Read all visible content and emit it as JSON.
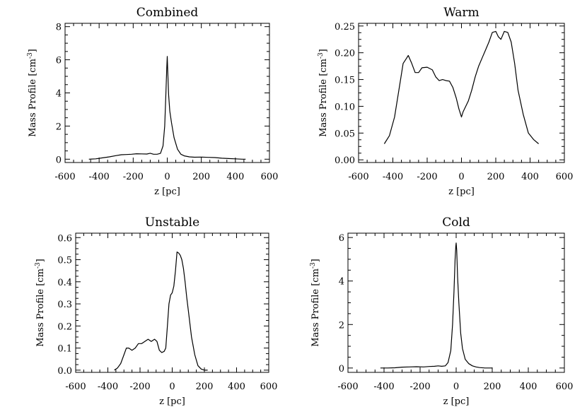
{
  "chart_data": [
    {
      "type": "line",
      "title": "Combined",
      "xlabel": "z [pc]",
      "ylabel": "Mass Profile [cm",
      "ylabel_sup": "-3",
      "ylabel_end": "]",
      "xlim": [
        -600,
        600
      ],
      "ylim": [
        -0.2,
        8.2
      ],
      "xticks": [
        -600,
        -400,
        -200,
        0,
        200,
        400,
        600
      ],
      "xtick_labels": [
        "-600",
        "-400",
        "-200",
        "0",
        "200",
        "400",
        "600"
      ],
      "yticks": [
        0,
        2,
        4,
        6,
        8
      ],
      "ytick_labels": [
        "0",
        "2",
        "4",
        "6",
        "8"
      ],
      "series": [
        {
          "name": "Combined",
          "x": [
            -460,
            -420,
            -380,
            -340,
            -300,
            -270,
            -240,
            -210,
            -180,
            -150,
            -120,
            -100,
            -80,
            -60,
            -40,
            -25,
            -15,
            -8,
            -3,
            0,
            3,
            8,
            15,
            25,
            40,
            60,
            80,
            100,
            130,
            160,
            200,
            240,
            280,
            320,
            360,
            400,
            440,
            460
          ],
          "y": [
            0.0,
            0.02,
            0.08,
            0.14,
            0.22,
            0.27,
            0.28,
            0.3,
            0.33,
            0.32,
            0.31,
            0.36,
            0.3,
            0.3,
            0.35,
            0.8,
            2.0,
            4.0,
            5.5,
            6.2,
            5.3,
            3.9,
            2.9,
            2.2,
            1.3,
            0.6,
            0.3,
            0.2,
            0.14,
            0.12,
            0.13,
            0.11,
            0.1,
            0.06,
            0.04,
            0.02,
            0.0,
            0.0
          ]
        }
      ]
    },
    {
      "type": "line",
      "title": "Warm",
      "xlabel": "z [pc]",
      "ylabel": "Mass Profile [cm",
      "ylabel_sup": "-3",
      "ylabel_end": "]",
      "xlim": [
        -600,
        600
      ],
      "ylim": [
        -0.005,
        0.255
      ],
      "xticks": [
        -600,
        -400,
        -200,
        0,
        200,
        400,
        600
      ],
      "xtick_labels": [
        "-600",
        "-400",
        "-200",
        "0",
        "200",
        "400",
        "600"
      ],
      "yticks": [
        0.0,
        0.05,
        0.1,
        0.15,
        0.2,
        0.25
      ],
      "ytick_labels": [
        "0.00",
        "0.05",
        "0.10",
        "0.15",
        "0.20",
        "0.25"
      ],
      "series": [
        {
          "name": "Warm",
          "x": [
            -450,
            -420,
            -390,
            -360,
            -340,
            -320,
            -310,
            -290,
            -270,
            -250,
            -230,
            -200,
            -170,
            -150,
            -130,
            -110,
            -90,
            -70,
            -50,
            -30,
            -15,
            0,
            10,
            25,
            40,
            60,
            80,
            100,
            120,
            140,
            160,
            180,
            200,
            215,
            230,
            250,
            270,
            290,
            310,
            330,
            360,
            390,
            420,
            450
          ],
          "y": [
            0.03,
            0.045,
            0.08,
            0.14,
            0.18,
            0.19,
            0.195,
            0.18,
            0.163,
            0.163,
            0.172,
            0.173,
            0.168,
            0.155,
            0.148,
            0.15,
            0.148,
            0.147,
            0.135,
            0.115,
            0.095,
            0.08,
            0.09,
            0.1,
            0.11,
            0.13,
            0.155,
            0.175,
            0.19,
            0.205,
            0.22,
            0.238,
            0.24,
            0.23,
            0.225,
            0.24,
            0.238,
            0.22,
            0.18,
            0.13,
            0.085,
            0.05,
            0.038,
            0.03
          ]
        }
      ]
    },
    {
      "type": "line",
      "title": "Unstable",
      "xlabel": "z [pc]",
      "ylabel": "Mass Profile [cm",
      "ylabel_sup": "-3",
      "ylabel_end": "]",
      "xlim": [
        -600,
        600
      ],
      "ylim": [
        -0.01,
        0.62
      ],
      "xticks": [
        -600,
        -400,
        -200,
        0,
        200,
        400,
        600
      ],
      "xtick_labels": [
        "-600",
        "-400",
        "-200",
        "0",
        "200",
        "400",
        "600"
      ],
      "yticks": [
        0.0,
        0.1,
        0.2,
        0.3,
        0.4,
        0.5,
        0.6
      ],
      "ytick_labels": [
        "0.0",
        "0.1",
        "0.2",
        "0.3",
        "0.4",
        "0.5",
        "0.6"
      ],
      "series": [
        {
          "name": "Unstable",
          "x": [
            -360,
            -340,
            -320,
            -300,
            -285,
            -270,
            -250,
            -230,
            -210,
            -190,
            -170,
            -150,
            -130,
            -110,
            -95,
            -80,
            -65,
            -50,
            -40,
            -30,
            -20,
            -10,
            0,
            10,
            20,
            30,
            40,
            50,
            60,
            70,
            80,
            90,
            100,
            120,
            140,
            160,
            180,
            200,
            220
          ],
          "y": [
            0.0,
            0.01,
            0.03,
            0.07,
            0.1,
            0.1,
            0.09,
            0.1,
            0.12,
            0.12,
            0.13,
            0.14,
            0.13,
            0.14,
            0.13,
            0.09,
            0.08,
            0.085,
            0.1,
            0.2,
            0.3,
            0.34,
            0.35,
            0.38,
            0.45,
            0.535,
            0.53,
            0.52,
            0.5,
            0.46,
            0.4,
            0.33,
            0.27,
            0.15,
            0.07,
            0.02,
            0.005,
            0.0,
            0.0
          ]
        }
      ]
    },
    {
      "type": "line",
      "title": "Cold",
      "xlabel": "z [pc]",
      "ylabel": "Mass Profile [cm",
      "ylabel_sup": "-3",
      "ylabel_end": "]",
      "xlim": [
        -600,
        600
      ],
      "ylim": [
        -0.2,
        6.2
      ],
      "xticks": [
        -600,
        -400,
        -200,
        0,
        200,
        400,
        600
      ],
      "xtick_labels": [
        "-600",
        "-400",
        "-200",
        "0",
        "200",
        "400",
        "600"
      ],
      "yticks": [
        0,
        2,
        4,
        6
      ],
      "ytick_labels": [
        "0",
        "2",
        "4",
        "6"
      ],
      "series": [
        {
          "name": "Cold",
          "x": [
            -420,
            -380,
            -340,
            -300,
            -260,
            -220,
            -180,
            -150,
            -120,
            -100,
            -80,
            -60,
            -45,
            -30,
            -20,
            -12,
            -6,
            -2,
            0,
            3,
            8,
            15,
            25,
            35,
            50,
            70,
            90,
            110,
            130,
            160,
            200
          ],
          "y": [
            0.0,
            0.0,
            0.01,
            0.04,
            0.05,
            0.06,
            0.05,
            0.07,
            0.08,
            0.1,
            0.08,
            0.1,
            0.25,
            0.8,
            2.0,
            3.5,
            5.0,
            5.6,
            5.75,
            5.4,
            4.2,
            3.0,
            1.6,
            0.9,
            0.4,
            0.2,
            0.1,
            0.05,
            0.02,
            0.0,
            0.0
          ]
        }
      ]
    }
  ]
}
